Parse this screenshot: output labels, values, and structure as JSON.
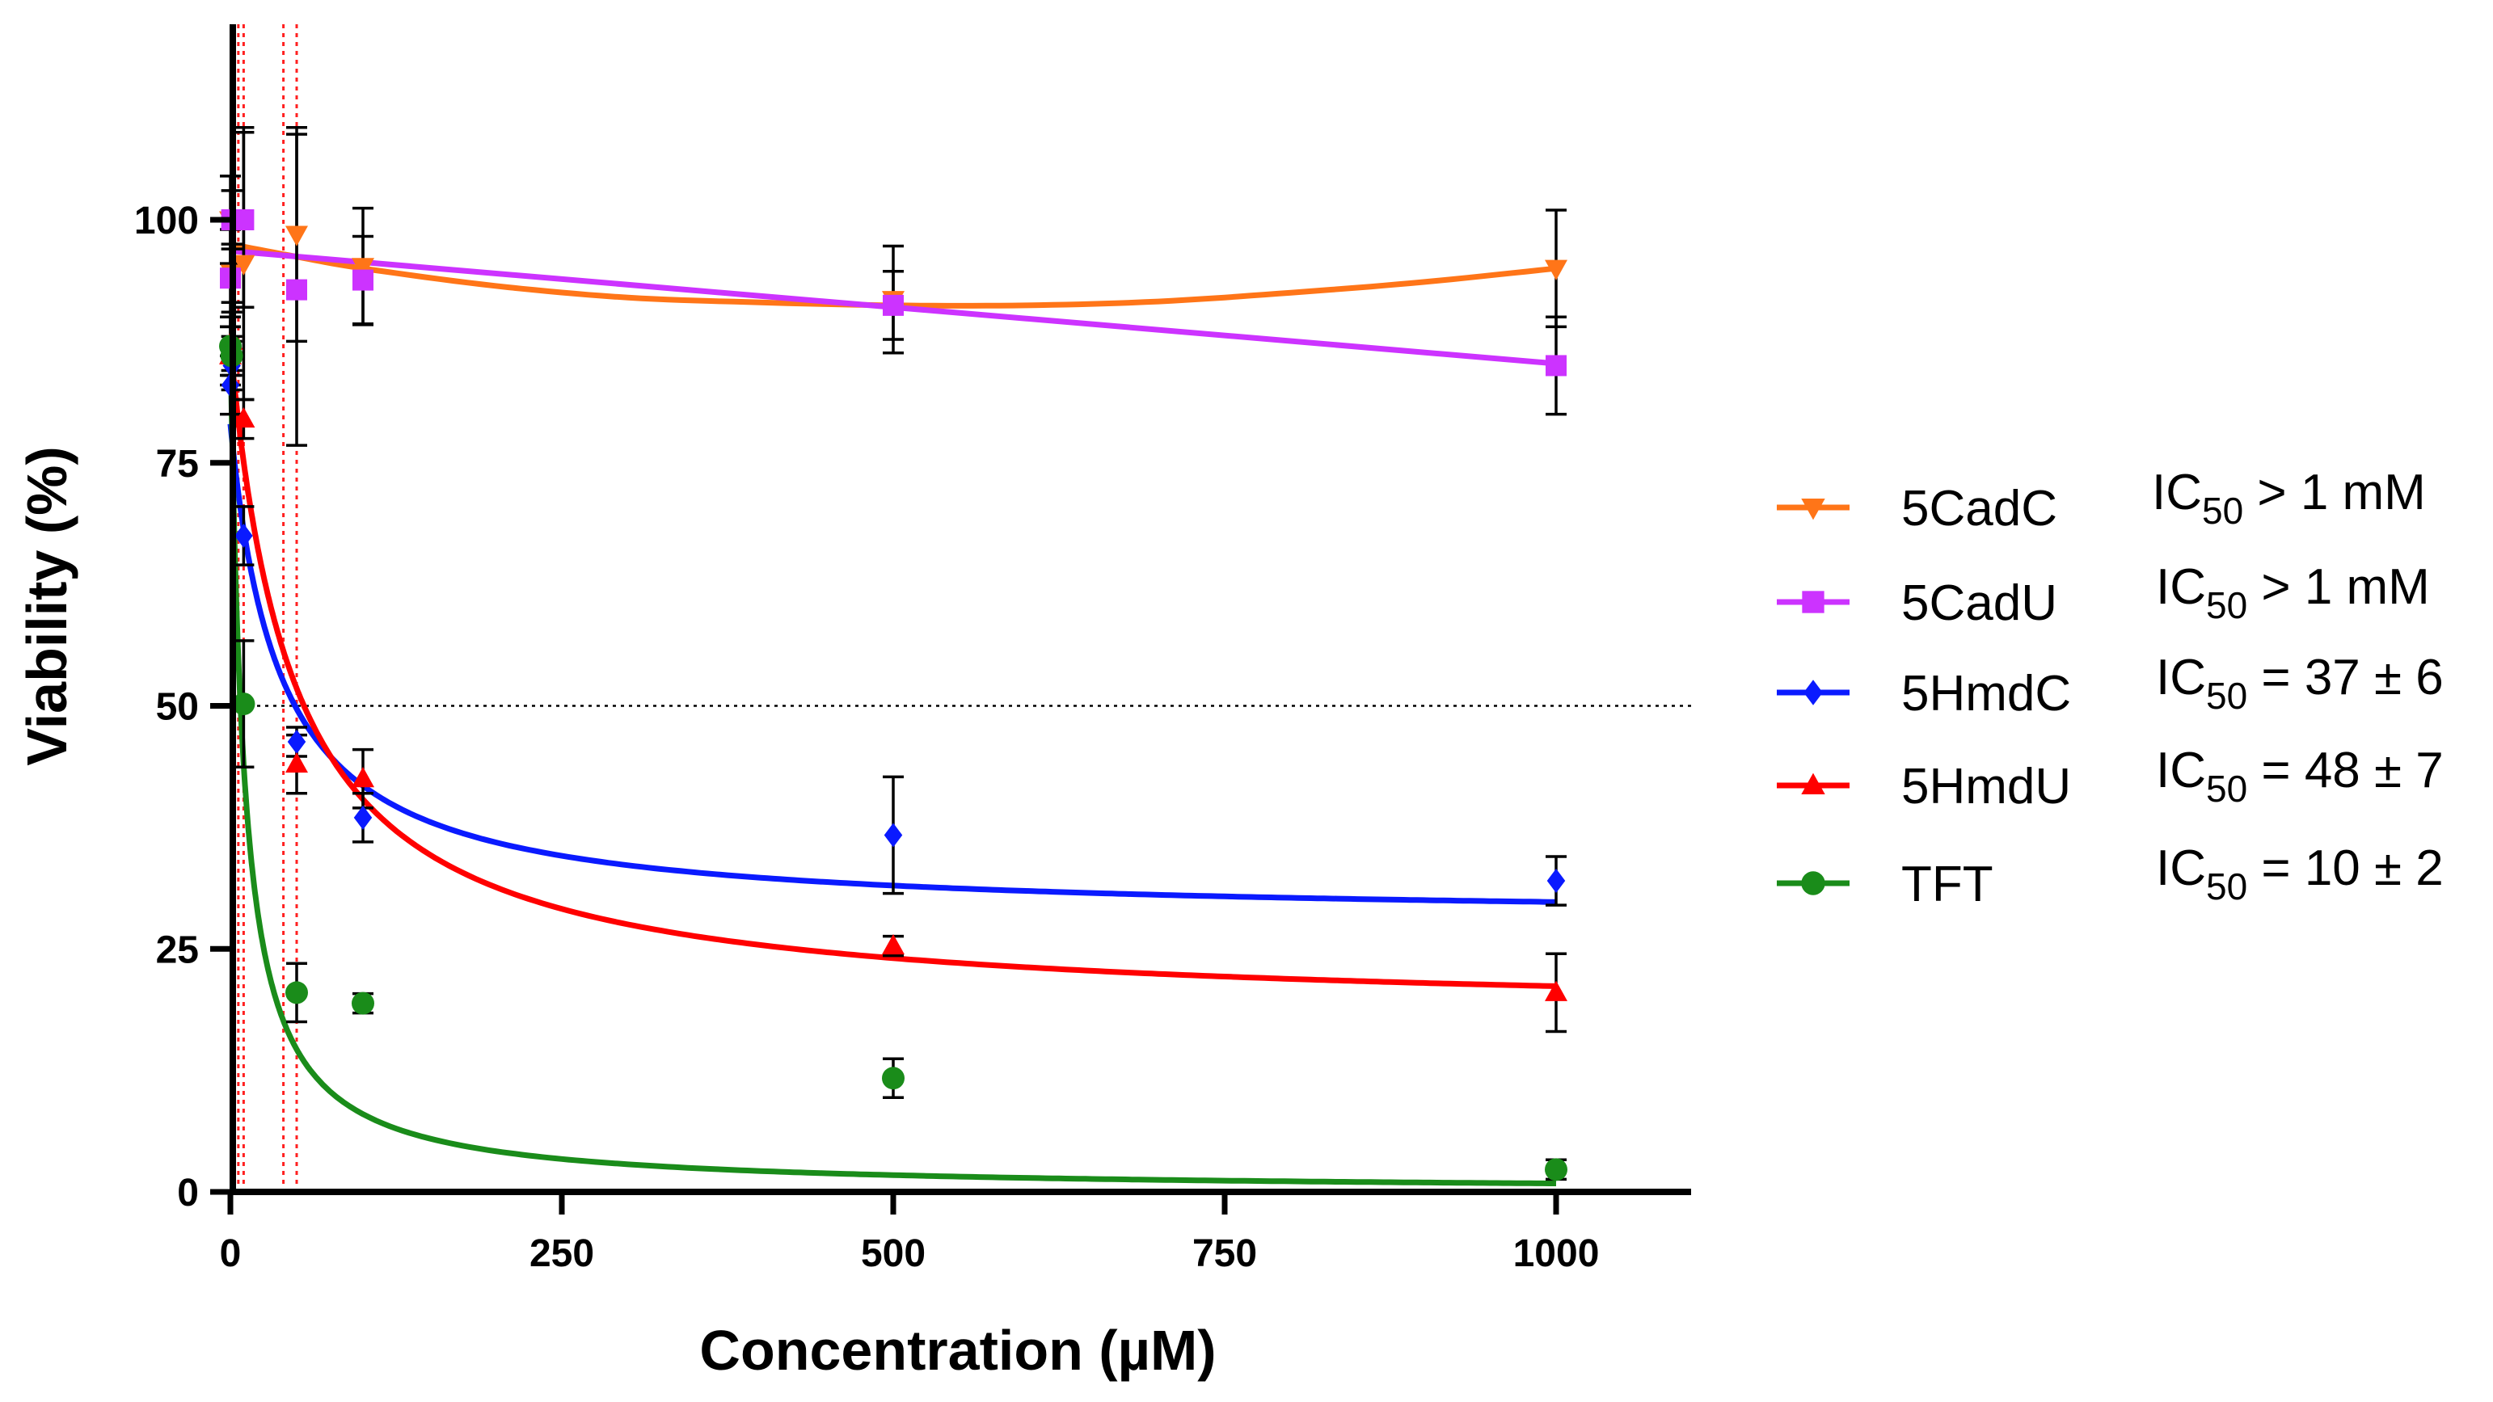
{
  "chart_data": {
    "type": "scatter",
    "xlabel": "Concentration (µM)",
    "ylabel": "Viability (%)",
    "xlim": [
      -10,
      1100
    ],
    "ylim": [
      0,
      120
    ],
    "x_ticks": [
      0,
      250,
      500,
      750,
      1000
    ],
    "x_tick_labels": [
      "0",
      "250",
      "500",
      "750",
      "1000"
    ],
    "y_ticks": [
      0,
      25,
      50,
      75,
      100
    ],
    "y_tick_labels": [
      "0",
      "25",
      "50",
      "75",
      "100"
    ],
    "reference_line_y": 50,
    "ic50_markers_x": [
      6,
      10,
      40,
      50
    ],
    "legend_position": "right",
    "series": [
      {
        "name": "5CadC",
        "ic50_label": "IC50 > 1 mM",
        "ic50_text": "IC",
        "ic50_sub": "50",
        "ic50_rest": " > 1 mM",
        "color": "#ff7518",
        "marker": "triangle-down",
        "x": [
          0,
          1,
          10,
          50,
          100,
          500,
          1000
        ],
        "y": [
          100,
          94.5,
          95.5,
          98.5,
          95.2,
          91.8,
          95.0
        ],
        "err": [
          4.5,
          3.0,
          14.0,
          11.0,
          6.0,
          5.5,
          6.0
        ],
        "fit": [
          [
            0,
            97.5
          ],
          [
            50,
            96.2
          ],
          [
            100,
            95.0
          ],
          [
            200,
            93.2
          ],
          [
            300,
            92.0
          ],
          [
            400,
            91.5
          ],
          [
            500,
            91.2
          ],
          [
            600,
            91.2
          ],
          [
            700,
            91.6
          ],
          [
            800,
            92.5
          ],
          [
            900,
            93.6
          ],
          [
            1000,
            95.0
          ]
        ]
      },
      {
        "name": "5CadU",
        "ic50_label": "IC50 > 1 mM",
        "ic50_text": "IC",
        "ic50_sub": "50",
        "ic50_rest": " > 1 mM",
        "color": "#cc33ff",
        "marker": "square",
        "x": [
          0,
          1,
          10,
          50,
          100,
          500,
          1000
        ],
        "y": [
          94.0,
          100,
          100,
          92.8,
          93.8,
          91.2,
          85.0
        ],
        "err": [
          5.0,
          3.0,
          9.0,
          16.0,
          4.5,
          3.5,
          5.0
        ],
        "fit": [
          [
            0,
            96.8
          ],
          [
            1000,
            85.2
          ]
        ]
      },
      {
        "name": "5HmdC",
        "ic50_label": "IC50 = 37 ± 6",
        "ic50_text": "IC",
        "ic50_sub": "50",
        "ic50_rest": " = 37 ± 6",
        "color": "#0a1aff",
        "marker": "diamond",
        "ic50": 37,
        "top": 79,
        "bottom": 28,
        "x": [
          0,
          1,
          10,
          50,
          100,
          500,
          1000
        ],
        "y": [
          83.0,
          85.0,
          67.5,
          46.3,
          38.5,
          36.7,
          32.0
        ],
        "err": [
          3.0,
          2.5,
          3.0,
          1.5,
          2.5,
          6.0,
          2.5
        ]
      },
      {
        "name": "5HmdU",
        "ic50_label": "IC50 = 48 ± 7",
        "ic50_text": "IC",
        "ic50_sub": "50",
        "ic50_rest": " = 48 ± 7",
        "color": "#ff0000",
        "marker": "triangle",
        "ic50": 48,
        "top": 87,
        "bottom": 18,
        "x": [
          0,
          1,
          10,
          50,
          100,
          500,
          1000
        ],
        "y": [
          86.0,
          87.5,
          79.5,
          44.0,
          42.5,
          25.3,
          20.5
        ],
        "err": [
          3.0,
          3.0,
          2.0,
          3.0,
          3.0,
          1.0,
          4.0
        ]
      },
      {
        "name": "TFT",
        "ic50_label": "IC50 = 10 ± 2",
        "ic50_text": "IC",
        "ic50_sub": "50",
        "ic50_rest": " = 10 ± 2",
        "color": "#1a8c1a",
        "marker": "circle",
        "ic50": 10,
        "top": 88,
        "bottom": 0,
        "x": [
          0,
          1,
          10,
          50,
          100,
          500,
          1000
        ],
        "y": [
          87.0,
          86.0,
          50.2,
          20.5,
          19.4,
          11.7,
          2.3
        ],
        "err": [
          3.0,
          2.0,
          6.5,
          3.0,
          1.0,
          2.0,
          1.0
        ]
      }
    ]
  }
}
